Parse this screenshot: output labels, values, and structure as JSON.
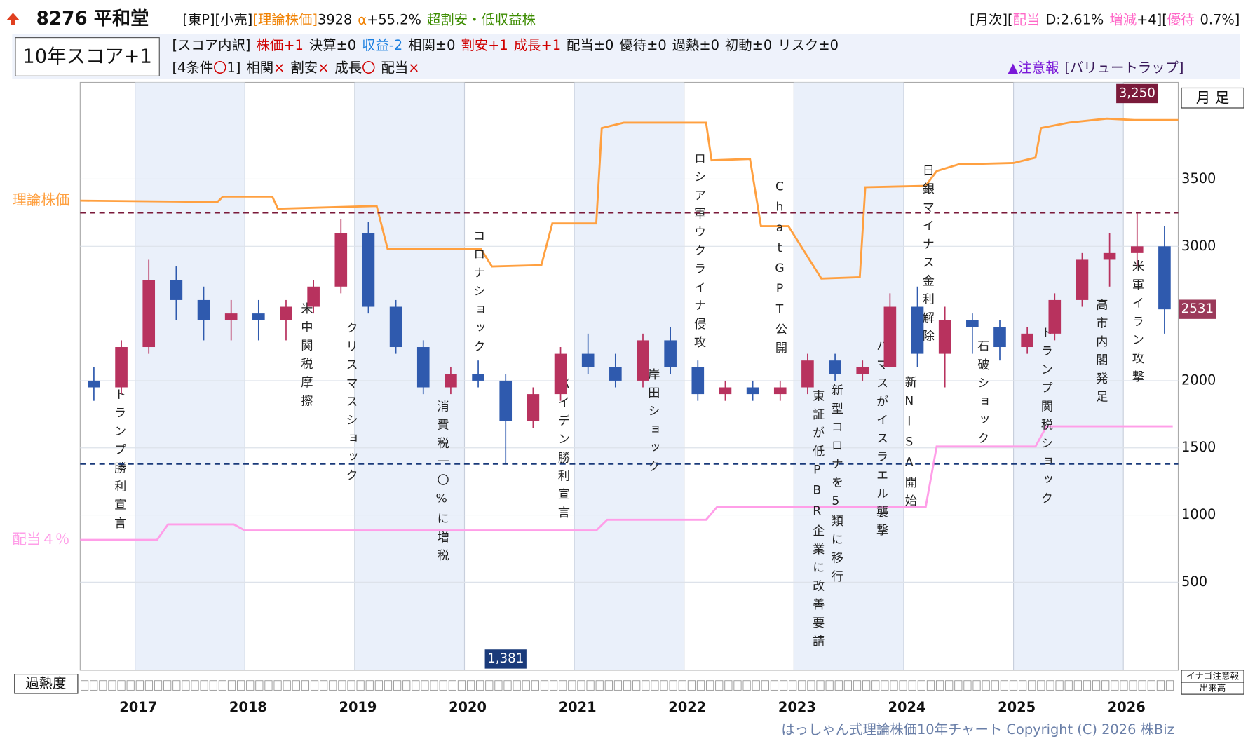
{
  "header": {
    "title": "8276 平和堂",
    "score": "10年スコア+1",
    "line1": [
      [
        {
          "text": "[東P][小売]"
        },
        {
          "text": "[理論株価]",
          "color": "#f08000"
        },
        {
          "text": "3928"
        }
      ],
      [
        {
          "text": "α",
          "color": "#f08000"
        },
        {
          "text": "+55.2%"
        }
      ],
      [
        {
          "text": "超割安・低収益株",
          "color": "#3c8c00"
        }
      ]
    ],
    "line1_right": [
      [
        {
          "text": "[月次]["
        },
        {
          "text": "配当",
          "color": "#ff69c8"
        }
      ],
      [
        {
          "text": "D:2.61%"
        }
      ],
      [
        {
          "text": "増減",
          "color": "#ff69c8"
        },
        {
          "text": "+4]["
        },
        {
          "text": "優待",
          "color": "#ff69c8"
        }
      ],
      [
        {
          "text": "0.7%]"
        }
      ]
    ],
    "line2": [
      [
        {
          "text": "[スコア内訳]"
        }
      ],
      [
        {
          "text": "株価+1",
          "color": "#d00000"
        }
      ],
      [
        {
          "text": "決算±0"
        }
      ],
      [
        {
          "text": "収益-2",
          "color": "#1a7fe0"
        }
      ],
      [
        {
          "text": "相関±0"
        }
      ],
      [
        {
          "text": "割安+1",
          "color": "#d00000"
        }
      ],
      [
        {
          "text": "成長+1",
          "color": "#d00000"
        }
      ],
      [
        {
          "text": "配当±0"
        }
      ],
      [
        {
          "text": "優待±0"
        }
      ],
      [
        {
          "text": "過熱±0"
        }
      ],
      [
        {
          "text": "初動±0"
        }
      ],
      [
        {
          "text": "リスク±0"
        }
      ]
    ],
    "line3": [
      [
        {
          "text": "[4条件"
        },
        {
          "text": "〇",
          "color": "#d00000"
        },
        {
          "text": "1]"
        }
      ],
      [
        {
          "text": "相関"
        },
        {
          "text": "×",
          "color": "#d00000"
        }
      ],
      [
        {
          "text": "割安"
        },
        {
          "text": "×",
          "color": "#d00000"
        }
      ],
      [
        {
          "text": "成長"
        },
        {
          "text": "〇",
          "color": "#d00000"
        }
      ],
      [
        {
          "text": "配当"
        },
        {
          "text": "×",
          "color": "#d00000"
        }
      ]
    ],
    "line3_right": [
      [
        {
          "text": "▲注意報",
          "color": "#7a18d8"
        }
      ],
      [
        {
          "text": "[バリュートラップ]",
          "color": "#3a1a5a"
        }
      ]
    ]
  },
  "chart_data": {
    "type": "candlestick",
    "period_label": "月 足",
    "overheat_label": "過熱度",
    "inago_label": "イナゴ注意報",
    "volume_label": "出来高",
    "copyright": "はっしゃん式理論株価10年チャート Copyright (C) 2026 株Biz",
    "up_color": "#b8325e",
    "down_color": "#2f5aae",
    "x": [
      2016.625,
      2016.875,
      2017.125,
      2017.375,
      2017.625,
      2017.875,
      2018.125,
      2018.375,
      2018.625,
      2018.875,
      2019.125,
      2019.375,
      2019.625,
      2019.875,
      2020.125,
      2020.375,
      2020.625,
      2020.875,
      2021.125,
      2021.375,
      2021.625,
      2021.875,
      2022.125,
      2022.375,
      2022.625,
      2022.875,
      2023.125,
      2023.375,
      2023.625,
      2023.875,
      2024.125,
      2024.375,
      2024.625,
      2024.875,
      2025.125,
      2025.375,
      2025.625,
      2025.875,
      2026.125,
      2026.375
    ],
    "open": [
      2000,
      1950,
      2250,
      2750,
      2600,
      2450,
      2500,
      2450,
      2550,
      2700,
      3100,
      2550,
      2250,
      1950,
      2050,
      2000,
      1700,
      1900,
      2200,
      2100,
      2000,
      2300,
      2100,
      1900,
      1950,
      1900,
      1950,
      2150,
      2050,
      2100,
      2550,
      2200,
      2450,
      2400,
      2250,
      2350,
      2600,
      2900,
      2950,
      3000
    ],
    "high": [
      2100,
      2300,
      2900,
      2850,
      2700,
      2600,
      2600,
      2600,
      2750,
      3200,
      3180,
      2600,
      2300,
      2100,
      2150,
      2050,
      1950,
      2250,
      2350,
      2200,
      2350,
      2400,
      2150,
      2000,
      2000,
      2000,
      2200,
      2200,
      2150,
      2650,
      2700,
      2550,
      2500,
      2450,
      2400,
      2650,
      2950,
      3100,
      3250,
      3150
    ],
    "low": [
      1850,
      1900,
      2200,
      2450,
      2300,
      2300,
      2300,
      2300,
      2500,
      2650,
      2500,
      2200,
      1900,
      1900,
      1950,
      1381,
      1650,
      1850,
      2050,
      1950,
      1950,
      2050,
      1850,
      1850,
      1850,
      1850,
      1900,
      2000,
      2000,
      2100,
      2100,
      1950,
      2200,
      2150,
      2200,
      2300,
      2550,
      2700,
      2850,
      2350
    ],
    "close": [
      1950,
      2250,
      2750,
      2600,
      2450,
      2500,
      2450,
      2550,
      2700,
      3100,
      2550,
      2250,
      1950,
      2050,
      2000,
      1700,
      1900,
      2200,
      2100,
      2000,
      2300,
      2100,
      1900,
      1950,
      1900,
      1950,
      2150,
      2050,
      2100,
      2550,
      2200,
      2450,
      2400,
      2250,
      2350,
      2600,
      2900,
      2950,
      3000,
      2531
    ],
    "lines": [
      {
        "name": "理論株価",
        "color": "#ffa040",
        "x": [
          2016.5,
          2017.75,
          2017.8,
          2018.25,
          2018.3,
          2019.2,
          2019.3,
          2020.15,
          2020.25,
          2020.7,
          2020.8,
          2021.2,
          2021.25,
          2021.45,
          2022.2,
          2022.25,
          2022.6,
          2022.7,
          2022.95,
          2023.25,
          2023.6,
          2023.65,
          2024.2,
          2024.3,
          2024.5,
          2025.0,
          2025.2,
          2025.25,
          2025.5,
          2025.85,
          2026.1,
          2026.5
        ],
        "values": [
          3340,
          3330,
          3370,
          3370,
          3280,
          3300,
          2980,
          2980,
          2850,
          2860,
          3170,
          3170,
          3880,
          3920,
          3920,
          3640,
          3650,
          3150,
          3150,
          2760,
          2770,
          3440,
          3450,
          3560,
          3610,
          3620,
          3660,
          3880,
          3920,
          3950,
          3940,
          3940
        ]
      },
      {
        "name": "配当４％",
        "color": "#ff9ee8",
        "x": [
          2016.5,
          2017.2,
          2017.3,
          2017.9,
          2018.0,
          2021.2,
          2021.3,
          2022.2,
          2022.3,
          2024.2,
          2024.3,
          2025.2,
          2025.3,
          2026.45
        ],
        "values": [
          815,
          815,
          930,
          930,
          885,
          885,
          965,
          965,
          1060,
          1060,
          1510,
          1510,
          1660,
          1660
        ]
      }
    ],
    "hlines": [
      {
        "value": 3250,
        "label": "3,250",
        "color": "#7a1a3a"
      },
      {
        "value": 1381,
        "label": "1,381",
        "color": "#1a3a7a"
      }
    ],
    "annotations": [
      {
        "text": "トランプ勝利宣言",
        "x": 2016.85,
        "at": 1946
      },
      {
        "text": "米中関税摩擦",
        "x": 2018.55,
        "at": 2583
      },
      {
        "text": "クリスマスショック",
        "x": 2018.96,
        "at": 2440
      },
      {
        "text": "消費税一〇%に増税",
        "x": 2019.79,
        "at": 1857
      },
      {
        "text": "コロナショック",
        "x": 2020.12,
        "at": 3125
      },
      {
        "text": "バイデン勝利宣言",
        "x": 2020.89,
        "at": 2024
      },
      {
        "text": "岸田ショック",
        "x": 2021.71,
        "at": 2095
      },
      {
        "text": "ロシア軍ウクライナ侵攻",
        "x": 2022.13,
        "at": 3702
      },
      {
        "text": "ChatGPT公開",
        "x": 2022.87,
        "at": 3494
      },
      {
        "text": "東証が低PBR企業に改善要請",
        "x": 2023.21,
        "at": 1934
      },
      {
        "text": "新型コロナを5類に移行",
        "x": 2023.38,
        "at": 1976
      },
      {
        "text": "ハマスがイスラエル襲撃",
        "x": 2023.79,
        "at": 2304
      },
      {
        "text": "新NISA開始",
        "x": 2024.05,
        "at": 2036
      },
      {
        "text": "日銀マイナス金利解除",
        "x": 2024.21,
        "at": 3613
      },
      {
        "text": "石破ショック",
        "x": 2024.71,
        "at": 2304
      },
      {
        "text": "トランプ関税ショック",
        "x": 2025.29,
        "at": 2405
      },
      {
        "text": "高市内閣発足",
        "x": 2025.79,
        "at": 2613
      },
      {
        "text": "米軍イラン攻撃",
        "x": 2026.12,
        "at": 2899
      }
    ],
    "xlim": [
      2016.5,
      2026.5
    ],
    "xticks": [
      2017,
      2018,
      2019,
      2020,
      2021,
      2022,
      2023,
      2024,
      2025,
      2026
    ],
    "ylim": [
      -155,
      4220
    ],
    "yticks": [
      500,
      1000,
      1500,
      2000,
      3000,
      3500
    ],
    "shaded_years": [
      2017,
      2019,
      2021,
      2023,
      2025
    ],
    "grid": true
  }
}
